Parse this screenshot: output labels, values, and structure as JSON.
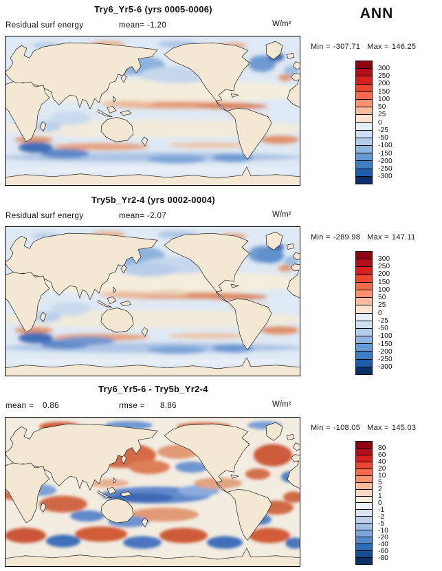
{
  "season": "ANN",
  "panels": [
    {
      "title": "Try6_Yr5-6 (yrs 0005-0006)",
      "field_label": "Residual surf energy",
      "mean_label": "mean=",
      "mean_value": "-1.20",
      "units": "W/m²",
      "min_label": "Min =",
      "min_value": "-307.71",
      "max_label": "Max =",
      "max_value": "146.25",
      "colorbar": {
        "labels": [
          "300",
          "250",
          "200",
          "150",
          "100",
          "50",
          "25",
          "0",
          "-25",
          "-50",
          "-100",
          "-150",
          "-200",
          "-250",
          "-300"
        ],
        "colors": [
          "#8c0410",
          "#b1101b",
          "#d32020",
          "#ec4633",
          "#f76b4c",
          "#fc926e",
          "#fdbb9a",
          "#fbe3cd",
          "#e6eef8",
          "#cfdff2",
          "#b2cce9",
          "#8fb4de",
          "#689ad2",
          "#407cc2",
          "#1f5cab",
          "#0a3167"
        ]
      }
    },
    {
      "title": "Try5b_Yr2-4 (yrs 0002-0004)",
      "field_label": "Residual surf energy",
      "mean_label": "mean=",
      "mean_value": "-2.07",
      "units": "W/m²",
      "min_label": "Min =",
      "min_value": "-289.98",
      "max_label": "Max =",
      "max_value": "147.11",
      "colorbar": {
        "labels": [
          "300",
          "250",
          "200",
          "150",
          "100",
          "50",
          "25",
          "0",
          "-25",
          "-50",
          "-100",
          "-150",
          "-200",
          "-250",
          "-300"
        ],
        "colors": [
          "#8c0410",
          "#b1101b",
          "#d32020",
          "#ec4633",
          "#f76b4c",
          "#fc926e",
          "#fdbb9a",
          "#fbe3cd",
          "#e6eef8",
          "#cfdff2",
          "#b2cce9",
          "#8fb4de",
          "#689ad2",
          "#407cc2",
          "#1f5cab",
          "#0a3167"
        ]
      }
    },
    {
      "title": "Try6_Yr5-6 - Try5b_Yr2-4",
      "mean_label": "mean =",
      "mean_value": "0.86",
      "rmse_label": "rmse =",
      "rmse_value": "8.86",
      "units": "W/m²",
      "min_label": "Min =",
      "min_value": "-108.05",
      "max_label": "Max =",
      "max_value": "145.03",
      "colorbar": {
        "labels": [
          "80",
          "60",
          "40",
          "20",
          "10",
          "5",
          "2",
          "1",
          "0",
          "-1",
          "-2",
          "-5",
          "-10",
          "-20",
          "-40",
          "-60",
          "-80"
        ],
        "colors": [
          "#8c0410",
          "#b1101b",
          "#d32020",
          "#ec4633",
          "#f76b4c",
          "#fc926e",
          "#fdbb9a",
          "#fcd9bf",
          "#fbeedd",
          "#eef3fa",
          "#d8e5f3",
          "#bdd3ec",
          "#9fc0e3",
          "#7ba8d8",
          "#5389c9",
          "#2f6cb5",
          "#174f97",
          "#0a3167"
        ]
      }
    }
  ],
  "chart_data": [
    {
      "type": "heatmap",
      "title": "Try6_Yr5-6 (yrs 0005-0006)",
      "variable": "Residual surf energy",
      "season": "ANN",
      "units": "W/m²",
      "projection": "global lat-lon map, Pacific-centered",
      "stats": {
        "mean": -1.2,
        "min": -307.71,
        "max": 146.25
      },
      "contour_levels": [
        -300,
        -250,
        -200,
        -150,
        -100,
        -50,
        -25,
        0,
        25,
        50,
        100,
        150,
        200,
        250,
        300
      ],
      "colormap": "blue-white-red diverging",
      "legend_position": "right"
    },
    {
      "type": "heatmap",
      "title": "Try5b_Yr2-4 (yrs 0002-0004)",
      "variable": "Residual surf energy",
      "season": "ANN",
      "units": "W/m²",
      "projection": "global lat-lon map, Pacific-centered",
      "stats": {
        "mean": -2.07,
        "min": -289.98,
        "max": 147.11
      },
      "contour_levels": [
        -300,
        -250,
        -200,
        -150,
        -100,
        -50,
        -25,
        0,
        25,
        50,
        100,
        150,
        200,
        250,
        300
      ],
      "colormap": "blue-white-red diverging",
      "legend_position": "right"
    },
    {
      "type": "heatmap",
      "title": "Try6_Yr5-6 - Try5b_Yr2-4",
      "season": "ANN",
      "units": "W/m²",
      "projection": "global lat-lon map, Pacific-centered",
      "stats": {
        "mean": 0.86,
        "rmse": 8.86,
        "min": -108.05,
        "max": 145.03
      },
      "contour_levels": [
        -80,
        -60,
        -40,
        -20,
        -10,
        -5,
        -2,
        -1,
        0,
        1,
        2,
        5,
        10,
        20,
        40,
        60,
        80
      ],
      "colormap": "blue-white-red diverging",
      "legend_position": "right"
    }
  ]
}
